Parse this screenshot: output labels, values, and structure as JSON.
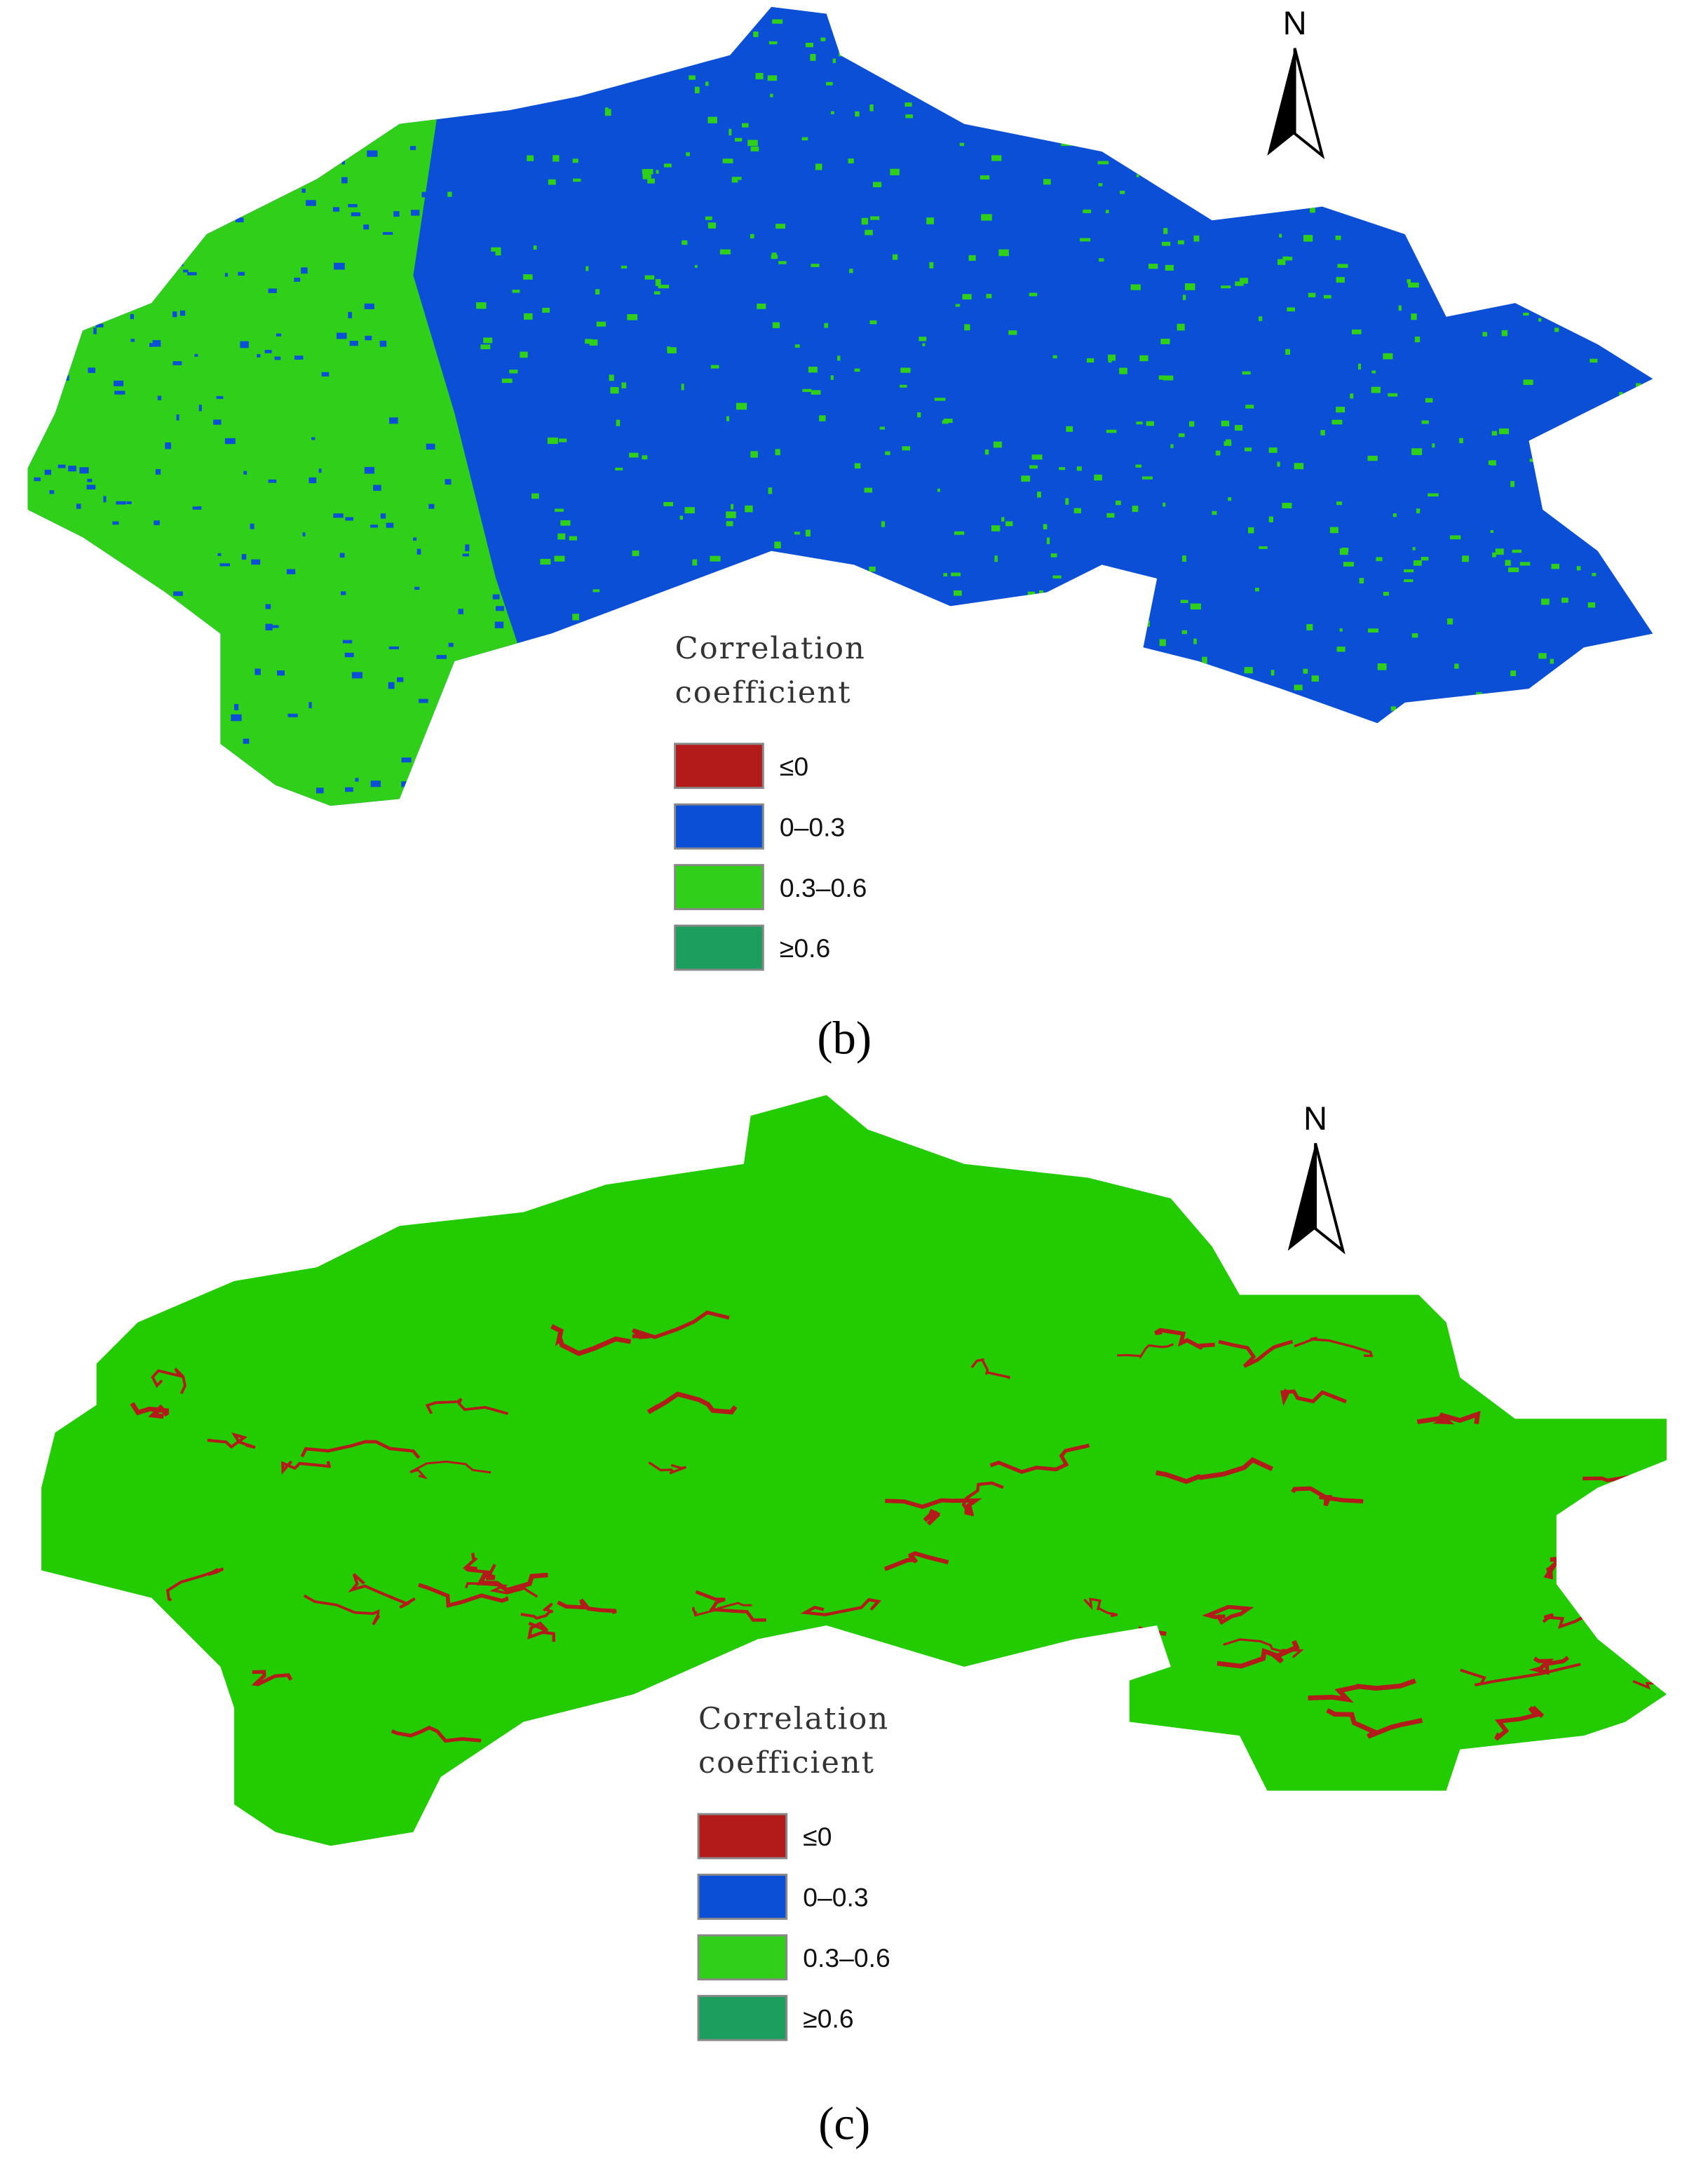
{
  "panels": [
    {
      "caption": "(b)",
      "north": "N",
      "legend": {
        "title": [
          "Correlation",
          "coefficient"
        ],
        "items": [
          {
            "label": "≤0",
            "color": "#b31b1b"
          },
          {
            "label": "0–0.3",
            "color": "#0a4fd6"
          },
          {
            "label": "0.3–0.6",
            "color": "#2fcf1a"
          },
          {
            "label": "≥0.6",
            "color": "#1b9e5e"
          }
        ]
      }
    },
    {
      "caption": "(c)",
      "north": "N",
      "legend": {
        "title": [
          "Correlation",
          "coefficient"
        ],
        "items": [
          {
            "label": "≤0",
            "color": "#b31b1b"
          },
          {
            "label": "0–0.3",
            "color": "#0a4fd6"
          },
          {
            "label": "0.3–0.6",
            "color": "#2fcf1a"
          },
          {
            "label": "≥0.6",
            "color": "#1b9e5e"
          }
        ]
      }
    }
  ]
}
